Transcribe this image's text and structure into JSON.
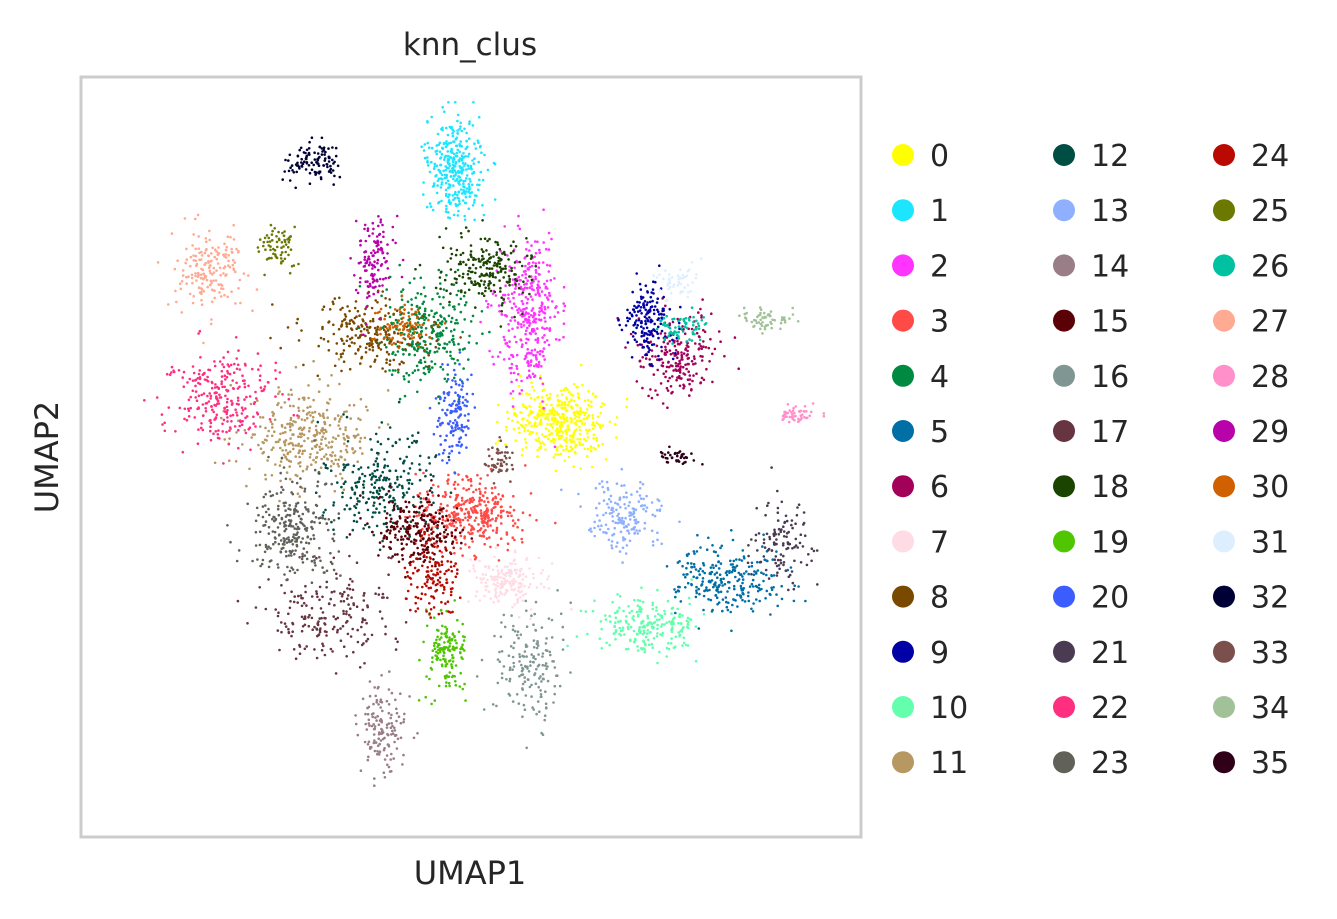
{
  "chart_data": {
    "type": "scatter",
    "title": "knn_clus",
    "xlabel": "UMAP1",
    "ylabel": "UMAP2",
    "grid": false,
    "ticks": "none",
    "legend_placement": "right",
    "legend_columns": 3,
    "xlim": [
      0,
      100
    ],
    "ylim": [
      0,
      100
    ],
    "clusters": [
      {
        "name": "0",
        "color": "#ffff00",
        "center": [
          62,
          45
        ],
        "spread": [
          5.5,
          4.5
        ],
        "n": 420
      },
      {
        "name": "1",
        "color": "#1ce6ff",
        "center": [
          48,
          10
        ],
        "spread": [
          3,
          5.5
        ],
        "n": 340
      },
      {
        "name": "2",
        "color": "#ff34ff",
        "center": [
          58,
          30
        ],
        "spread": [
          3.5,
          9
        ],
        "n": 360
      },
      {
        "name": "3",
        "color": "#ff4a46",
        "center": [
          50,
          58
        ],
        "spread": [
          6,
          4
        ],
        "n": 360
      },
      {
        "name": "4",
        "color": "#008941",
        "center": [
          44,
          33
        ],
        "spread": [
          5,
          6
        ],
        "n": 300
      },
      {
        "name": "5",
        "color": "#006fa6",
        "center": [
          85,
          67
        ],
        "spread": [
          6,
          4
        ],
        "n": 260
      },
      {
        "name": "6",
        "color": "#a30059",
        "center": [
          78,
          36
        ],
        "spread": [
          5,
          5
        ],
        "n": 220
      },
      {
        "name": "7",
        "color": "#ffdbe5",
        "center": [
          55,
          67
        ],
        "spread": [
          4,
          3
        ],
        "n": 180
      },
      {
        "name": "8",
        "color": "#7a4900",
        "center": [
          36,
          33
        ],
        "spread": [
          7,
          4
        ],
        "n": 220
      },
      {
        "name": "9",
        "color": "#0000a6",
        "center": [
          74,
          31
        ],
        "spread": [
          3,
          4
        ],
        "n": 170
      },
      {
        "name": "10",
        "color": "#63ffac",
        "center": [
          74,
          73
        ],
        "spread": [
          6,
          3
        ],
        "n": 230
      },
      {
        "name": "11",
        "color": "#b79762",
        "center": [
          28,
          47
        ],
        "spread": [
          7,
          5
        ],
        "n": 330
      },
      {
        "name": "12",
        "color": "#004d43",
        "center": [
          38,
          54
        ],
        "spread": [
          6,
          6
        ],
        "n": 250
      },
      {
        "name": "13",
        "color": "#8fb0ff",
        "center": [
          71,
          58
        ],
        "spread": [
          4,
          4
        ],
        "n": 170
      },
      {
        "name": "14",
        "color": "#997d87",
        "center": [
          38,
          87
        ],
        "spread": [
          2.5,
          5
        ],
        "n": 140
      },
      {
        "name": "15",
        "color": "#5a0007",
        "center": [
          43,
          60
        ],
        "spread": [
          5,
          4
        ],
        "n": 240
      },
      {
        "name": "16",
        "color": "#809693",
        "center": [
          58,
          79
        ],
        "spread": [
          4,
          6
        ],
        "n": 170
      },
      {
        "name": "17",
        "color": "#663541",
        "center": [
          31,
          72
        ],
        "spread": [
          7,
          5
        ],
        "n": 200
      },
      {
        "name": "18",
        "color": "#1b4400",
        "center": [
          52,
          24
        ],
        "spread": [
          5,
          4
        ],
        "n": 220
      },
      {
        "name": "19",
        "color": "#4fc601",
        "center": [
          47,
          77
        ],
        "spread": [
          2,
          5
        ],
        "n": 150
      },
      {
        "name": "20",
        "color": "#3b5dff",
        "center": [
          48,
          44
        ],
        "spread": [
          2,
          6
        ],
        "n": 140
      },
      {
        "name": "21",
        "color": "#4a3b53",
        "center": [
          92,
          62
        ],
        "spread": [
          3,
          5
        ],
        "n": 120
      },
      {
        "name": "22",
        "color": "#ff2f80",
        "center": [
          16,
          42
        ],
        "spread": [
          6,
          5
        ],
        "n": 260
      },
      {
        "name": "23",
        "color": "#61615a",
        "center": [
          26,
          60
        ],
        "spread": [
          5,
          6
        ],
        "n": 260
      },
      {
        "name": "24",
        "color": "#ba0900",
        "center": [
          45,
          66
        ],
        "spread": [
          3,
          5
        ],
        "n": 140
      },
      {
        "name": "25",
        "color": "#6b7900",
        "center": [
          24,
          21
        ],
        "spread": [
          2,
          2.5
        ],
        "n": 70
      },
      {
        "name": "26",
        "color": "#00c2a0",
        "center": [
          79,
          32
        ],
        "spread": [
          3,
          2
        ],
        "n": 70
      },
      {
        "name": "27",
        "color": "#ffaa92",
        "center": [
          15,
          24
        ],
        "spread": [
          4,
          4.5
        ],
        "n": 180
      },
      {
        "name": "28",
        "color": "#ff90c9",
        "center": [
          94,
          44
        ],
        "spread": [
          2,
          1
        ],
        "n": 50
      },
      {
        "name": "29",
        "color": "#b903aa",
        "center": [
          37,
          23
        ],
        "spread": [
          2,
          5
        ],
        "n": 130
      },
      {
        "name": "30",
        "color": "#d16100",
        "center": [
          41,
          32
        ],
        "spread": [
          3,
          2.5
        ],
        "n": 90
      },
      {
        "name": "31",
        "color": "#ddefff",
        "center": [
          78,
          26
        ],
        "spread": [
          2,
          2
        ],
        "n": 50
      },
      {
        "name": "32",
        "color": "#000035",
        "center": [
          29,
          9
        ],
        "spread": [
          3.5,
          2
        ],
        "n": 110
      },
      {
        "name": "33",
        "color": "#7b4f4b",
        "center": [
          54,
          50
        ],
        "spread": [
          1.5,
          2
        ],
        "n": 50
      },
      {
        "name": "34",
        "color": "#a1c299",
        "center": [
          90,
          31
        ],
        "spread": [
          3,
          1.5
        ],
        "n": 60
      },
      {
        "name": "35",
        "color": "#300018",
        "center": [
          78,
          50
        ],
        "spread": [
          2,
          0.8
        ],
        "n": 40
      }
    ]
  }
}
